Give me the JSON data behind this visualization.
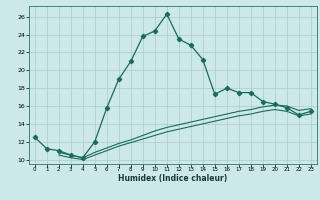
{
  "xlabel": "Humidex (Indice chaleur)",
  "background_color": "#cce8e8",
  "grid_color": "#aacccc",
  "line_color": "#1a6b5a",
  "xlim": [
    -0.5,
    23.5
  ],
  "ylim": [
    9.5,
    27.2
  ],
  "xticks": [
    0,
    1,
    2,
    3,
    4,
    5,
    6,
    7,
    8,
    9,
    10,
    11,
    12,
    13,
    14,
    15,
    16,
    17,
    18,
    19,
    20,
    21,
    22,
    23
  ],
  "yticks": [
    10,
    12,
    14,
    16,
    18,
    20,
    22,
    24,
    26
  ],
  "main_line_x": [
    0,
    1,
    2,
    3,
    4,
    5,
    6,
    7,
    8,
    9,
    10,
    11,
    12,
    13,
    14,
    15,
    16,
    17,
    18,
    19,
    20,
    21,
    22,
    23
  ],
  "main_line_y": [
    12.5,
    11.2,
    11.0,
    10.5,
    10.2,
    12.0,
    15.8,
    19.0,
    21.0,
    23.8,
    24.4,
    26.3,
    23.5,
    22.8,
    21.2,
    17.3,
    18.0,
    17.5,
    17.5,
    16.5,
    16.2,
    15.8,
    15.0,
    15.4
  ],
  "line2_x": [
    2,
    3,
    4,
    5,
    6,
    7,
    8,
    9,
    10,
    11,
    12,
    13,
    14,
    15,
    16,
    17,
    18,
    19,
    20,
    21,
    22,
    23
  ],
  "line2_y": [
    10.8,
    10.5,
    10.2,
    10.8,
    11.3,
    11.8,
    12.2,
    12.7,
    13.2,
    13.6,
    13.9,
    14.2,
    14.5,
    14.8,
    15.1,
    15.4,
    15.6,
    15.9,
    16.1,
    16.0,
    15.5,
    15.7
  ],
  "line3_x": [
    2,
    3,
    4,
    5,
    6,
    7,
    8,
    9,
    10,
    11,
    12,
    13,
    14,
    15,
    16,
    17,
    18,
    19,
    20,
    21,
    22,
    23
  ],
  "line3_y": [
    10.5,
    10.2,
    10.0,
    10.5,
    11.0,
    11.5,
    11.9,
    12.3,
    12.7,
    13.1,
    13.4,
    13.7,
    14.0,
    14.3,
    14.6,
    14.9,
    15.1,
    15.4,
    15.6,
    15.4,
    14.9,
    15.1
  ]
}
